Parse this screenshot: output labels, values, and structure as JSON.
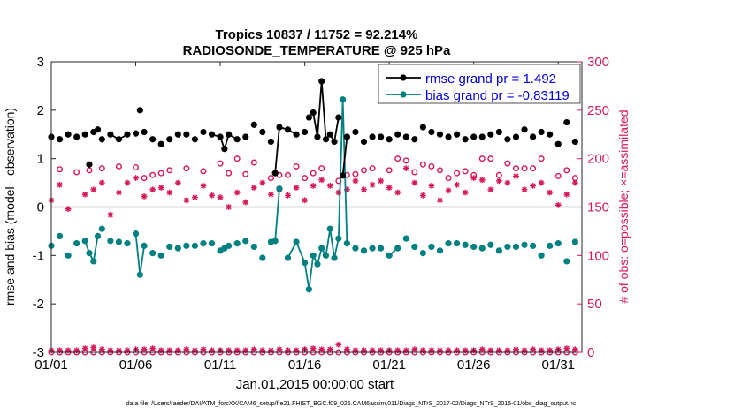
{
  "chart_data": {
    "type": "line",
    "title": "Tropics 10837 / 11752 = 92.214%",
    "subtitle": "RADIOSONDE_TEMPERATURE @ 925 hPa",
    "xlabel": "Jan.01,2015 00:00:00 start",
    "ylabel": "rmse and bias (model - observation)",
    "y2label": "# of obs: o=possible; ×=assimilated",
    "footnote": "data file: /Users/raeder/DAI/ATM_forcXX/CAM6_setup/f.e21.FHIST_BGC.f09_025.CAM6assim.011/Diags_NTrS_2017-02/Diags_NTrS_2015-01/obs_diag_output.nc",
    "xlim": [
      0,
      31.4
    ],
    "ylim": [
      -3,
      3
    ],
    "y2lim": [
      0,
      300
    ],
    "x_ticks": [
      0,
      5,
      10,
      15,
      20,
      25,
      30
    ],
    "x_tick_labels": [
      "01/01",
      "01/06",
      "01/11",
      "01/16",
      "01/21",
      "01/26",
      "01/31"
    ],
    "y_ticks": [
      -3,
      -2,
      -1,
      0,
      1,
      2,
      3
    ],
    "y2_ticks": [
      0,
      50,
      100,
      150,
      200,
      250,
      300
    ],
    "grid": false,
    "zero_line": 0,
    "legend": {
      "placement": "top-right",
      "entries": [
        {
          "name": "rmse grand pr = 1.492",
          "color": "#000000"
        },
        {
          "name": "bias grand pr = -0.83119",
          "color": "#008080"
        }
      ]
    },
    "colors": {
      "rmse": "#000000",
      "bias": "#008080",
      "obs": "#d6185b",
      "zero_line": "#b0b0b0"
    },
    "series": [
      {
        "name": "rmse",
        "x": [
          0,
          0.5,
          1,
          1.5,
          2,
          2.25,
          2.5,
          2.75,
          3,
          3.5,
          4,
          4.5,
          5,
          5.25,
          5.5,
          6,
          6.5,
          7,
          7.5,
          8,
          8.5,
          9,
          9.5,
          10,
          10.25,
          10.5,
          11,
          11.5,
          12,
          12.5,
          13,
          13.25,
          13.5,
          14,
          14.5,
          15,
          15.25,
          15.5,
          15.75,
          16,
          16.25,
          16.5,
          16.75,
          17,
          17.25,
          17.5,
          18,
          18.5,
          19,
          19.5,
          20,
          20.5,
          21,
          21.5,
          22,
          22.5,
          23,
          23.5,
          24,
          24.5,
          25,
          25.5,
          26,
          26.5,
          27,
          27.5,
          28,
          28.5,
          29,
          29.5,
          30,
          30.5,
          31
        ],
        "values": [
          1.45,
          1.4,
          1.5,
          1.45,
          1.5,
          0.88,
          1.55,
          1.6,
          1.4,
          1.5,
          1.4,
          1.5,
          1.52,
          2.0,
          1.55,
          1.4,
          1.3,
          1.4,
          1.5,
          1.5,
          1.4,
          1.55,
          1.5,
          1.45,
          1.2,
          1.5,
          1.4,
          1.45,
          1.7,
          1.55,
          1.35,
          0.7,
          1.65,
          1.6,
          1.5,
          1.55,
          1.85,
          1.95,
          1.45,
          2.6,
          1.4,
          1.5,
          1.35,
          1.85,
          0.65,
          1.45,
          1.55,
          1.35,
          1.45,
          1.45,
          1.4,
          1.5,
          1.45,
          1.4,
          1.65,
          1.55,
          1.5,
          1.45,
          1.5,
          1.4,
          1.45,
          1.45,
          1.5,
          1.55,
          1.4,
          1.45,
          1.6,
          1.45,
          1.55,
          1.5,
          1.3,
          1.75,
          1.35
        ],
        "segments": [
          [
            9,
            11
          ],
          [
            22,
            26
          ],
          [
            31,
            34
          ],
          [
            37,
            43
          ],
          [
            44,
            45
          ]
        ]
      },
      {
        "name": "bias",
        "x": [
          0,
          0.5,
          1,
          1.5,
          2,
          2.25,
          2.5,
          2.75,
          3,
          3.5,
          4,
          4.5,
          5,
          5.25,
          5.5,
          6,
          6.5,
          7,
          7.5,
          8,
          8.5,
          9,
          9.5,
          10,
          10.25,
          10.5,
          11,
          11.5,
          12,
          12.5,
          13,
          13.25,
          13.5,
          14,
          14.5,
          15,
          15.25,
          15.5,
          15.75,
          16,
          16.25,
          16.5,
          16.75,
          17,
          17.25,
          17.5,
          18,
          18.5,
          19,
          19.5,
          20,
          20.5,
          21,
          21.5,
          22,
          22.5,
          23,
          23.5,
          24,
          24.5,
          25,
          25.5,
          26,
          26.5,
          27,
          27.5,
          28,
          28.5,
          29,
          29.5,
          30,
          30.5,
          31
        ],
        "values": [
          -0.8,
          -0.6,
          -1.0,
          -0.75,
          -0.7,
          -0.95,
          -1.12,
          -0.6,
          -0.45,
          -0.7,
          -0.72,
          -0.75,
          -0.55,
          -1.4,
          -0.8,
          -0.95,
          -1.0,
          -0.82,
          -0.85,
          -0.8,
          -0.8,
          -0.75,
          -0.75,
          -0.9,
          -0.85,
          -0.8,
          -0.75,
          -0.7,
          -0.82,
          -1.05,
          -0.72,
          -0.7,
          0.38,
          -1.05,
          -0.72,
          -1.15,
          -1.7,
          -1.0,
          -1.18,
          -0.85,
          -1.0,
          -0.45,
          -1.05,
          -0.65,
          2.22,
          -0.75,
          -0.85,
          -0.9,
          -0.85,
          -0.85,
          -1.0,
          -0.85,
          -0.65,
          -0.82,
          -0.95,
          -0.82,
          -0.9,
          -0.75,
          -0.75,
          -0.78,
          -0.82,
          -0.85,
          -0.78,
          -0.9,
          -0.82,
          -0.82,
          -0.78,
          -0.8,
          -1.0,
          -0.8,
          -0.75,
          -1.12,
          -0.72
        ],
        "segments": [
          [
            4,
            7
          ],
          [
            9,
            9
          ],
          [
            12,
            14
          ],
          [
            30,
            32
          ],
          [
            33,
            38
          ],
          [
            38,
            45
          ],
          [
            50,
            51
          ]
        ]
      },
      {
        "name": "obs possible",
        "axis": "right",
        "x": [
          0.5,
          1.5,
          2.25,
          3,
          4,
          5,
          5.5,
          6,
          6.5,
          7,
          8,
          9,
          10,
          10.5,
          11,
          11.5,
          12,
          13,
          13.5,
          14,
          14.5,
          15,
          15.5,
          16,
          17,
          17.5,
          18,
          18.5,
          19,
          20,
          20.5,
          21,
          21.5,
          22,
          22.5,
          23,
          23.5,
          24,
          24.5,
          25,
          25.5,
          26,
          26.5,
          27,
          27.5,
          28,
          28.5,
          29,
          30,
          30.5,
          31
        ],
        "values": [
          189,
          186,
          188,
          190,
          192,
          191,
          180,
          183,
          185,
          188,
          190,
          187,
          195,
          185,
          200,
          184,
          196,
          180,
          183,
          183,
          192,
          180,
          185,
          190,
          177,
          183,
          184,
          188,
          190,
          188,
          200,
          198,
          186,
          194,
          192,
          188,
          180,
          185,
          187,
          183,
          200,
          200,
          183,
          195,
          190,
          190,
          190,
          200,
          182,
          188,
          180
        ]
      },
      {
        "name": "obs assimilated",
        "axis": "right",
        "x": [
          0,
          0.5,
          1,
          2,
          2.5,
          3,
          3.5,
          4,
          4.5,
          5,
          5.5,
          6,
          6.5,
          7,
          7.5,
          8,
          8.5,
          9,
          9.5,
          10,
          10.5,
          11,
          11.5,
          12,
          12.5,
          13,
          13.5,
          14,
          14.5,
          15,
          15.5,
          16,
          16.5,
          17,
          17.5,
          18,
          18.5,
          19,
          19.5,
          20,
          20.5,
          21,
          21.5,
          22,
          22.5,
          23,
          23.5,
          24,
          24.5,
          25,
          25.5,
          26,
          26.5,
          27,
          27.5,
          28,
          28.5,
          29,
          29.5,
          30,
          30.5,
          31
        ],
        "values": [
          157,
          173,
          148,
          163,
          168,
          175,
          142,
          165,
          175,
          180,
          161,
          168,
          170,
          165,
          175,
          157,
          160,
          172,
          162,
          160,
          150,
          165,
          155,
          170,
          175,
          163,
          168,
          162,
          170,
          157,
          172,
          178,
          172,
          165,
          168,
          177,
          168,
          173,
          177,
          170,
          165,
          190,
          175,
          162,
          172,
          157,
          167,
          173,
          165,
          180,
          178,
          168,
          177,
          175,
          182,
          168,
          172,
          175,
          165,
          152,
          163,
          175
        ]
      },
      {
        "name": "obs possible (bottom)",
        "axis": "right",
        "x_step": 0.5,
        "x_start": 0,
        "count": 63,
        "value": 0
      },
      {
        "name": "obs assimilated (bottom)",
        "axis": "right",
        "x": [
          0,
          0.5,
          1,
          1.5,
          2,
          2.5,
          3,
          3.5,
          4,
          4.5,
          5,
          5.5,
          6,
          6.5,
          7,
          7.5,
          8,
          8.5,
          9,
          9.5,
          10,
          10.5,
          11,
          11.5,
          12,
          12.5,
          13,
          13.5,
          14,
          14.5,
          15,
          15.5,
          16,
          16.5,
          17,
          17.5,
          18,
          18.5,
          19,
          19.5,
          20,
          20.5,
          21,
          21.5,
          22,
          22.5,
          23,
          23.5,
          24,
          24.5,
          25,
          25.5,
          26,
          26.5,
          27,
          27.5,
          28,
          28.5,
          29,
          29.5,
          30,
          30.5,
          31
        ],
        "values": [
          2,
          2,
          2,
          2,
          4,
          5,
          3,
          2,
          2,
          2,
          3,
          3,
          4,
          2,
          2,
          2,
          3,
          2,
          3,
          2,
          2,
          2,
          2,
          2,
          3,
          2,
          2,
          3,
          2,
          2,
          3,
          4,
          3,
          3,
          8,
          3,
          2,
          2,
          2,
          2,
          2,
          2,
          2,
          3,
          2,
          2,
          2,
          2,
          2,
          2,
          2,
          3,
          2,
          2,
          2,
          3,
          2,
          3,
          2,
          2,
          3,
          4,
          3
        ]
      }
    ]
  }
}
